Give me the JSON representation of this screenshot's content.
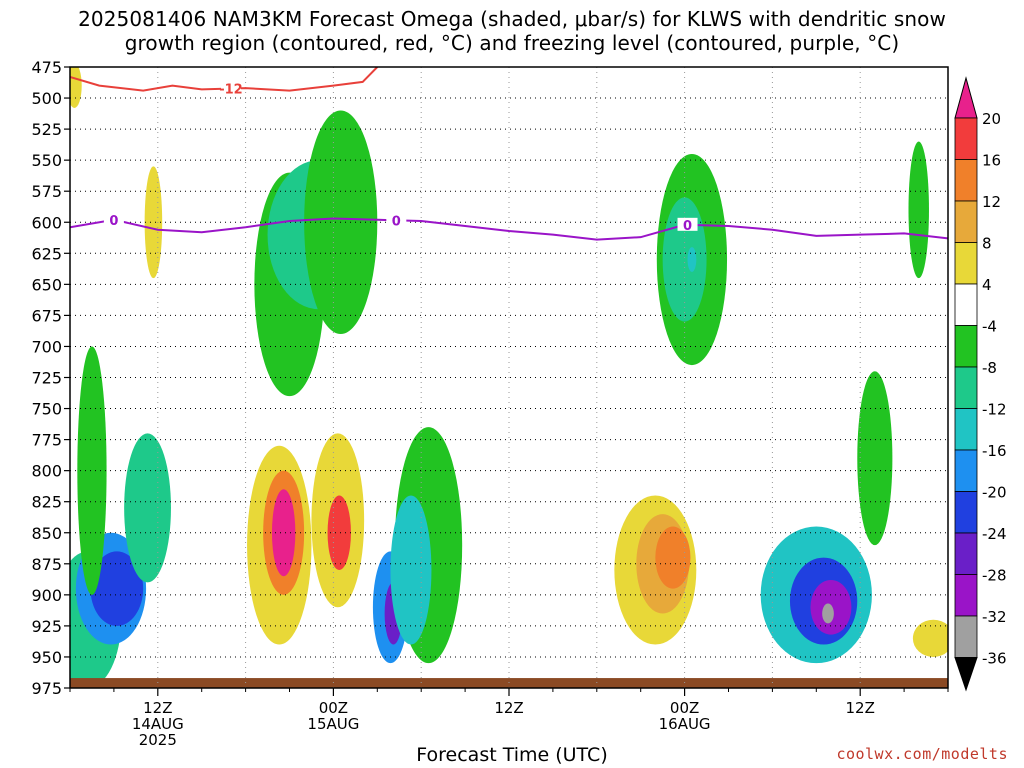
{
  "title_line1": "2025081406 NAM3KM Forecast Omega (shaded, μbar/s) for KLWS with dendritic snow",
  "title_line2": "growth region (contoured, red, °C) and freezing level (contoured, purple, °C)",
  "xlabel": "Forecast Time (UTC)",
  "credit": "coolwx.com/modelts",
  "chart_data": {
    "type": "heatmap",
    "title": "2025081406 NAM3KM Forecast Omega (shaded, μbar/s) for KLWS with dendritic snow growth region (contoured, red, °C) and freezing level (contoured, purple, °C)",
    "xlabel": "Forecast Time (UTC)",
    "ylabel": "",
    "x_unit": "hours since 2025-08-14 06Z",
    "xlim": [
      0,
      60
    ],
    "y_axis": "pressure (mb)",
    "ylim": [
      975,
      475
    ],
    "y_ticks": [
      475,
      500,
      525,
      550,
      575,
      600,
      625,
      650,
      675,
      700,
      725,
      750,
      775,
      800,
      825,
      850,
      875,
      900,
      925,
      950,
      975
    ],
    "x_ticks": [
      {
        "hour": 6,
        "labels": [
          "12Z",
          "14AUG",
          "2025"
        ]
      },
      {
        "hour": 18,
        "labels": [
          "00Z",
          "15AUG"
        ]
      },
      {
        "hour": 30,
        "labels": [
          "12Z"
        ]
      },
      {
        "hour": 42,
        "labels": [
          "00Z",
          "16AUG"
        ]
      },
      {
        "hour": 54,
        "labels": [
          "12Z"
        ]
      }
    ],
    "grid": true,
    "colorbar": {
      "unit": "μbar/s",
      "levels": [
        20,
        16,
        12,
        8,
        4,
        -4,
        -8,
        -12,
        -16,
        -20,
        -24,
        -28,
        -32,
        -36
      ],
      "bins": [
        {
          "range": [
            20,
            24
          ],
          "color": "#e8218c"
        },
        {
          "range": [
            16,
            20
          ],
          "color": "#f23c3c"
        },
        {
          "range": [
            12,
            16
          ],
          "color": "#f0802a"
        },
        {
          "range": [
            8,
            12
          ],
          "color": "#e7a93a"
        },
        {
          "range": [
            4,
            8
          ],
          "color": "#e8d838"
        },
        {
          "range": [
            -4,
            4
          ],
          "color": "#ffffff"
        },
        {
          "range": [
            -8,
            -4
          ],
          "color": "#22c322"
        },
        {
          "range": [
            -12,
            -8
          ],
          "color": "#1ec98a"
        },
        {
          "range": [
            -16,
            -12
          ],
          "color": "#20c4c4"
        },
        {
          "range": [
            -20,
            -16
          ],
          "color": "#1e90f0"
        },
        {
          "range": [
            -24,
            -20
          ],
          "color": "#2040e0"
        },
        {
          "range": [
            -28,
            -24
          ],
          "color": "#6a1fc8"
        },
        {
          "range": [
            -32,
            -28
          ],
          "color": "#9a14c8"
        },
        {
          "range": [
            -36,
            -32
          ],
          "color": "#a0a0a0"
        },
        {
          "range": [
            -40,
            -36
          ],
          "color": "#000000"
        }
      ]
    },
    "omega_cells": [
      {
        "hour": 0.3,
        "p": 490,
        "hw": 0.5,
        "hh": 18,
        "value": 5
      },
      {
        "hour": 5.7,
        "p": 600,
        "hw": 0.6,
        "hh": 45,
        "value": 5
      },
      {
        "hour": 1.2,
        "p": 920,
        "hw": 2.3,
        "hh": 55,
        "value": -12
      },
      {
        "hour": 2.8,
        "p": 895,
        "hw": 2.4,
        "hh": 45,
        "value": -17
      },
      {
        "hour": 3.2,
        "p": 895,
        "hw": 1.8,
        "hh": 30,
        "value": -21
      },
      {
        "hour": 5.3,
        "p": 830,
        "hw": 1.6,
        "hh": 60,
        "value": -9
      },
      {
        "hour": 1.5,
        "p": 800,
        "hw": 1.0,
        "hh": 100,
        "value": -6
      },
      {
        "hour": 15.0,
        "p": 650,
        "hw": 2.4,
        "hh": 90,
        "value": -6
      },
      {
        "hour": 17.0,
        "p": 610,
        "hw": 3.5,
        "hh": 60,
        "value": -9
      },
      {
        "hour": 18.5,
        "p": 600,
        "hw": 2.5,
        "hh": 90,
        "value": -7
      },
      {
        "hour": 14.8,
        "p": 620,
        "hw": 0.3,
        "hh": 15,
        "value": -12
      },
      {
        "hour": 14.3,
        "p": 860,
        "hw": 2.2,
        "hh": 80,
        "value": 6
      },
      {
        "hour": 14.6,
        "p": 850,
        "hw": 1.4,
        "hh": 50,
        "value": 14
      },
      {
        "hour": 14.6,
        "p": 850,
        "hw": 0.8,
        "hh": 35,
        "value": 20
      },
      {
        "hour": 18.3,
        "p": 840,
        "hw": 1.8,
        "hh": 70,
        "value": 7
      },
      {
        "hour": 18.4,
        "p": 850,
        "hw": 0.8,
        "hh": 30,
        "value": 18
      },
      {
        "hour": 21.9,
        "p": 910,
        "hw": 1.2,
        "hh": 45,
        "value": -18
      },
      {
        "hour": 22.1,
        "p": 915,
        "hw": 0.6,
        "hh": 25,
        "value": -26
      },
      {
        "hour": 24.5,
        "p": 860,
        "hw": 2.3,
        "hh": 95,
        "value": -7
      },
      {
        "hour": 23.3,
        "p": 880,
        "hw": 1.4,
        "hh": 60,
        "value": -13
      },
      {
        "hour": 40.0,
        "p": 880,
        "hw": 2.8,
        "hh": 60,
        "value": 5
      },
      {
        "hour": 40.5,
        "p": 875,
        "hw": 1.8,
        "hh": 40,
        "value": 10
      },
      {
        "hour": 41.2,
        "p": 870,
        "hw": 1.2,
        "hh": 25,
        "value": 13
      },
      {
        "hour": 42.5,
        "p": 630,
        "hw": 2.4,
        "hh": 85,
        "value": -7
      },
      {
        "hour": 42.0,
        "p": 630,
        "hw": 1.5,
        "hh": 50,
        "value": -10
      },
      {
        "hour": 42.5,
        "p": 630,
        "hw": 0.3,
        "hh": 10,
        "value": -13
      },
      {
        "hour": 51.0,
        "p": 900,
        "hw": 3.8,
        "hh": 55,
        "value": -14
      },
      {
        "hour": 51.5,
        "p": 905,
        "hw": 2.3,
        "hh": 35,
        "value": -22
      },
      {
        "hour": 52.0,
        "p": 910,
        "hw": 1.4,
        "hh": 22,
        "value": -29
      },
      {
        "hour": 51.8,
        "p": 915,
        "hw": 0.4,
        "hh": 8,
        "value": -34
      },
      {
        "hour": 58.0,
        "p": 590,
        "hw": 0.7,
        "hh": 55,
        "value": -7
      },
      {
        "hour": 55.0,
        "p": 790,
        "hw": 1.2,
        "hh": 70,
        "value": -6
      },
      {
        "hour": 59.0,
        "p": 935,
        "hw": 1.4,
        "hh": 15,
        "value": 5
      }
    ],
    "contours": [
      {
        "name": "-12",
        "color": "#e8403a",
        "label": "-12",
        "label_hour": 11,
        "points": [
          [
            0,
            483
          ],
          [
            2,
            490
          ],
          [
            5,
            494
          ],
          [
            7,
            490
          ],
          [
            9,
            493
          ],
          [
            12,
            492
          ],
          [
            15,
            494
          ],
          [
            18,
            490
          ],
          [
            20,
            487
          ],
          [
            21,
            475
          ]
        ]
      },
      {
        "name": "0",
        "color": "#9a14c8",
        "label": "0",
        "label_hour": 3,
        "points": [
          [
            0,
            604
          ],
          [
            3,
            598
          ],
          [
            6,
            606
          ],
          [
            9,
            608
          ],
          [
            12,
            604
          ],
          [
            15,
            599
          ],
          [
            18,
            597
          ],
          [
            21,
            598
          ],
          [
            24,
            599
          ],
          [
            27,
            603
          ],
          [
            30,
            607
          ],
          [
            33,
            610
          ],
          [
            36,
            614
          ],
          [
            39,
            612
          ],
          [
            42,
            602
          ],
          [
            45,
            603
          ],
          [
            48,
            606
          ],
          [
            51,
            611
          ],
          [
            54,
            610
          ],
          [
            57,
            609
          ],
          [
            60,
            613
          ]
        ],
        "extra_labels": [
          {
            "hour": 22.3,
            "label": "0"
          },
          {
            "hour": 42.2,
            "label": "0"
          }
        ]
      }
    ]
  }
}
